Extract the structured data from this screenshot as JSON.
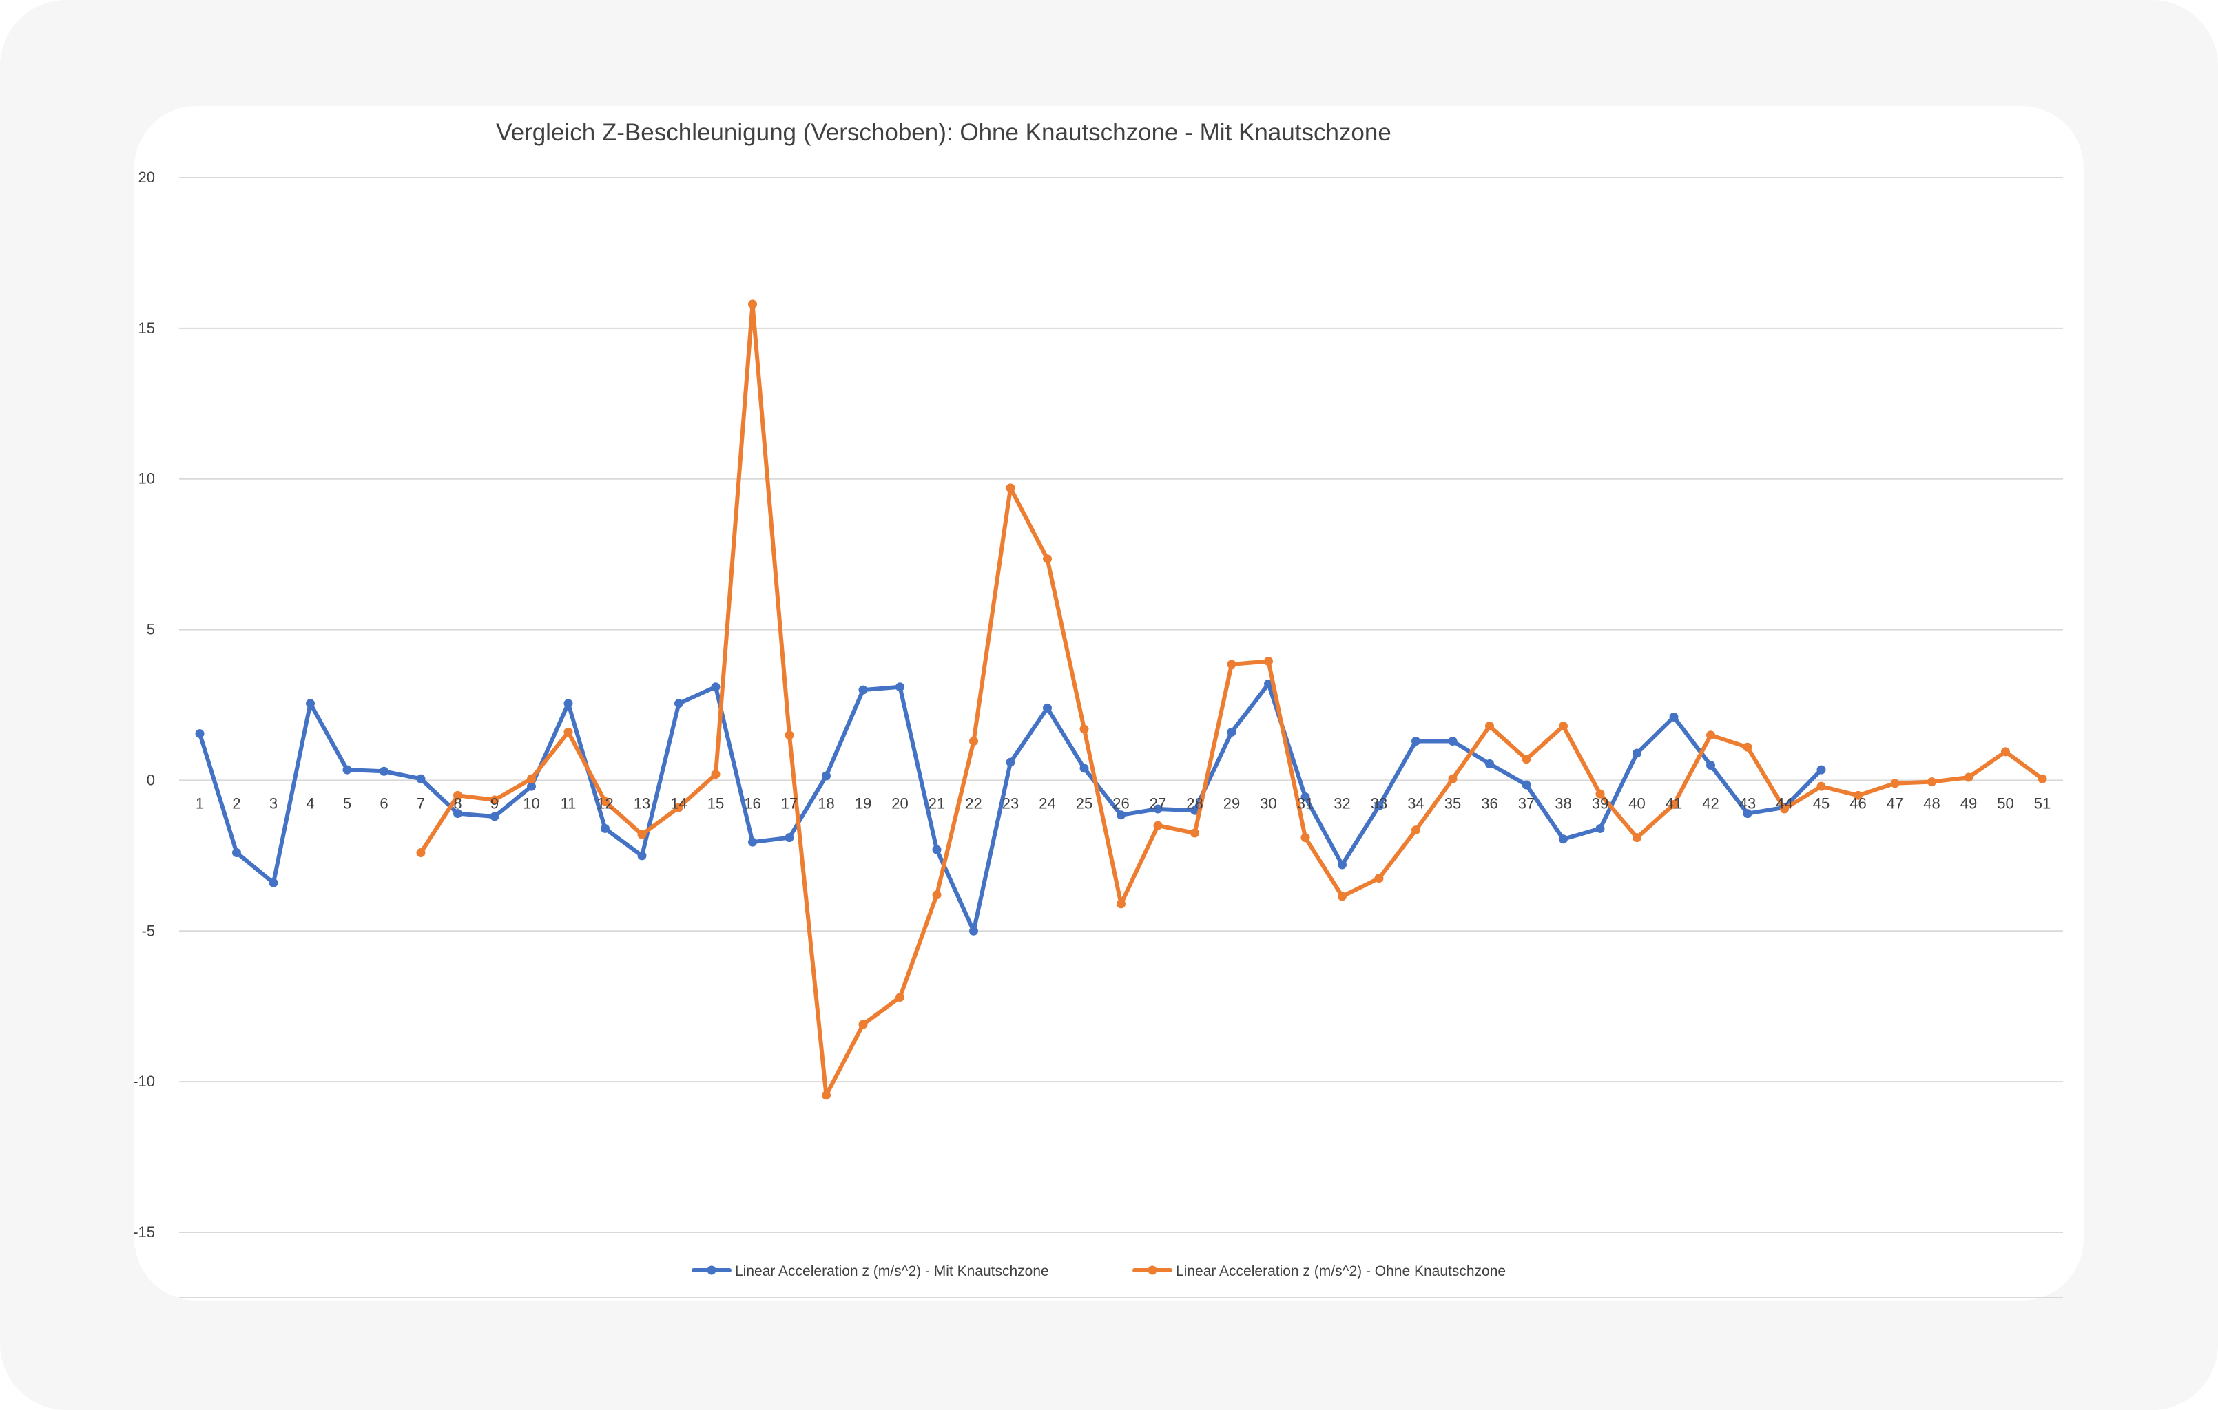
{
  "chart_data": {
    "type": "line",
    "title": "Vergleich Z-Beschleunigung (Verschoben): Ohne Knautschzone - Mit Knautschzone",
    "xlabel": "",
    "ylabel": "",
    "ylim": [
      -15,
      20
    ],
    "yticks": [
      "20",
      "15",
      "10",
      "5",
      "0",
      "-5",
      "-10",
      "-15"
    ],
    "categories": [
      "1",
      "2",
      "3",
      "4",
      "5",
      "6",
      "7",
      "8",
      "9",
      "10",
      "11",
      "12",
      "13",
      "14",
      "15",
      "16",
      "17",
      "18",
      "19",
      "20",
      "21",
      "22",
      "23",
      "24",
      "25",
      "26",
      "27",
      "28",
      "29",
      "30",
      "31",
      "32",
      "33",
      "34",
      "35",
      "36",
      "37",
      "38",
      "39",
      "40",
      "41",
      "42",
      "43",
      "44",
      "45",
      "46",
      "47",
      "48",
      "49",
      "50",
      "51"
    ],
    "grid": true,
    "legend_position": "bottom",
    "series": [
      {
        "name": "Linear Acceleration z (m/s^2) - Mit Knautschzone",
        "color": "#4472c4",
        "values": [
          1.55,
          -2.4,
          -3.4,
          2.55,
          0.35,
          0.3,
          0.05,
          -1.1,
          -1.2,
          -0.2,
          2.55,
          -1.6,
          -2.5,
          2.55,
          3.1,
          -2.05,
          -1.9,
          0.15,
          3.0,
          3.1,
          -2.3,
          -5.0,
          0.6,
          2.4,
          0.4,
          -1.15,
          -0.95,
          -1.0,
          1.6,
          3.2,
          -0.55,
          -2.8,
          -0.85,
          1.3,
          1.3,
          0.55,
          -0.15,
          -1.95,
          -1.6,
          0.9,
          2.1,
          0.5,
          -1.1,
          -0.9,
          0.35,
          null,
          null,
          null,
          null,
          null,
          null
        ]
      },
      {
        "name": "Linear Acceleration z (m/s^2) - Ohne Knautschzone",
        "color": "#ed7d31",
        "values": [
          null,
          null,
          null,
          null,
          null,
          null,
          -2.4,
          -0.5,
          -0.65,
          0.05,
          1.6,
          -0.7,
          -1.8,
          -0.9,
          0.2,
          15.8,
          1.5,
          -10.45,
          -8.1,
          -7.2,
          -3.8,
          1.3,
          9.7,
          7.35,
          1.7,
          -4.1,
          -1.5,
          -1.75,
          3.85,
          3.95,
          -1.9,
          -3.85,
          -3.25,
          -1.65,
          0.05,
          1.8,
          0.7,
          1.8,
          -0.45,
          -1.9,
          -0.8,
          1.5,
          1.1,
          -0.95,
          -0.2,
          -0.5,
          -0.1,
          -0.05,
          0.1,
          0.95,
          0.05
        ]
      }
    ]
  }
}
